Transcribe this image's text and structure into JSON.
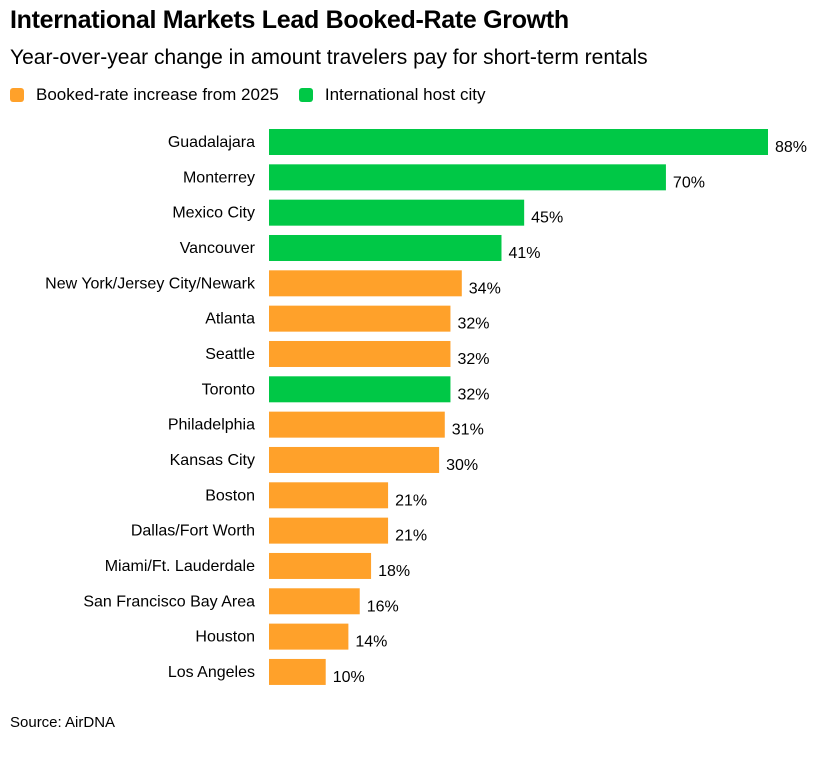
{
  "title": "International Markets Lead Booked-Rate Growth",
  "subtitle": "Year-over-year change in amount travelers pay for short-term rentals",
  "source": "Source: AirDNA",
  "colors": {
    "domestic": "#ffa12a",
    "international": "#00c846"
  },
  "legend": [
    {
      "label": "Booked-rate increase from 2025",
      "key": "domestic"
    },
    {
      "label": "International host city",
      "key": "international"
    }
  ],
  "chart_data": {
    "type": "bar",
    "orientation": "horizontal",
    "unit": "%",
    "categories": [
      "Guadalajara",
      "Monterrey",
      "Mexico City",
      "Vancouver",
      "New York/Jersey City/Newark",
      "Atlanta",
      "Seattle",
      "Toronto",
      "Philadelphia",
      "Kansas City",
      "Boston",
      "Dallas/Fort Worth",
      "Miami/Ft. Lauderdale",
      "San Francisco Bay Area",
      "Houston",
      "Los Angeles"
    ],
    "values": [
      88,
      70,
      45,
      41,
      34,
      32,
      32,
      32,
      31,
      30,
      21,
      21,
      18,
      16,
      14,
      10
    ],
    "group": [
      "international",
      "international",
      "international",
      "international",
      "domestic",
      "domestic",
      "domestic",
      "international",
      "domestic",
      "domestic",
      "domestic",
      "domestic",
      "domestic",
      "domestic",
      "domestic",
      "domestic"
    ],
    "labels": [
      "88%",
      "70%",
      "45%",
      "41%",
      "34%",
      "32%",
      "32%",
      "32%",
      "31%",
      "30%",
      "21%",
      "21%",
      "18%",
      "16%",
      "14%",
      "10%"
    ],
    "xlim": [
      0,
      88
    ],
    "grid": false,
    "legend_position": "top-left"
  }
}
